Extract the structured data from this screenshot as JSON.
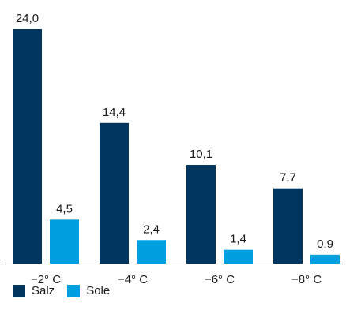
{
  "chart_data": {
    "type": "bar",
    "categories": [
      "−2° C",
      "−4° C",
      "−6° C",
      "−8° C"
    ],
    "series": [
      {
        "name": "Salz",
        "color": "#003660",
        "values": [
          24.0,
          14.4,
          10.1,
          7.7
        ],
        "labels": [
          "24,0",
          "14,4",
          "10,1",
          "7,7"
        ]
      },
      {
        "name": "Sole",
        "color": "#00a0e0",
        "values": [
          4.5,
          2.4,
          1.4,
          0.9
        ],
        "labels": [
          "4,5",
          "2,4",
          "1,4",
          "0,9"
        ]
      }
    ],
    "ylim": [
      0,
      24
    ],
    "grid": false,
    "legend": "bottom-left"
  }
}
